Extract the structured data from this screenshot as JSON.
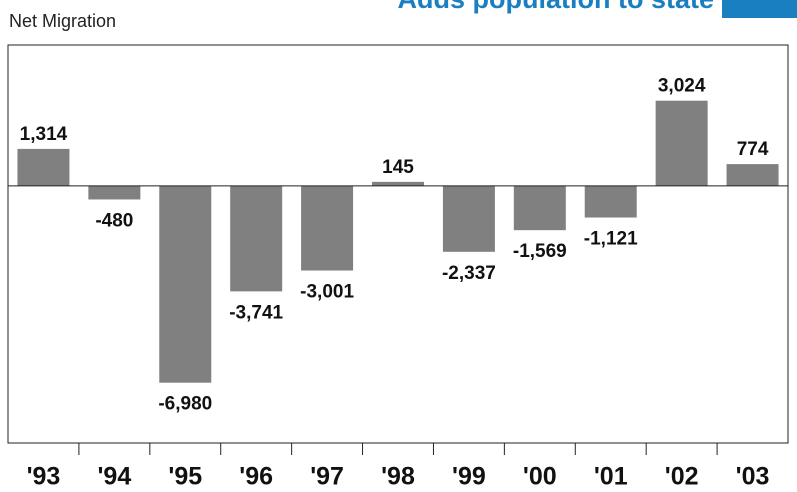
{
  "chart_data": {
    "type": "bar",
    "title": "Adds population to state",
    "subtitle": "Net Migration",
    "categories": [
      "'93",
      "'94",
      "'95",
      "'96",
      "'97",
      "'98",
      "'99",
      "'00",
      "'01",
      "'02",
      "'03"
    ],
    "values": [
      1314,
      -480,
      -6980,
      -3741,
      -3001,
      145,
      -2337,
      -1569,
      -1121,
      3024,
      774
    ],
    "value_labels": [
      "1,314",
      "-480",
      "-6,980",
      "-3,741",
      "-3,001",
      "145",
      "-2,337",
      "-1,569",
      "-1,121",
      "3,024",
      "774"
    ],
    "color": "#808080",
    "title_color": "#1a7fc1",
    "ylim": [
      -9120,
      5000
    ]
  }
}
